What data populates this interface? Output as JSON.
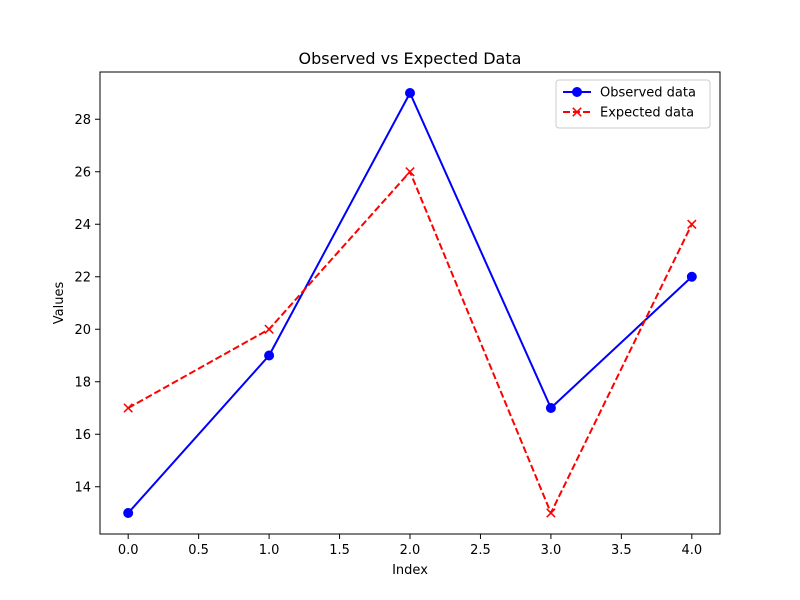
{
  "chart_data": {
    "type": "line",
    "title": "Observed vs Expected Data",
    "xlabel": "Index",
    "ylabel": "Values",
    "xlim": [
      -0.2,
      4.2
    ],
    "ylim": [
      12.2,
      29.8
    ],
    "xticks": [
      0.0,
      0.5,
      1.0,
      1.5,
      2.0,
      2.5,
      3.0,
      3.5,
      4.0
    ],
    "xtick_labels": [
      "0.0",
      "0.5",
      "1.0",
      "1.5",
      "2.0",
      "2.5",
      "3.0",
      "3.5",
      "4.0"
    ],
    "yticks": [
      14,
      16,
      18,
      20,
      22,
      24,
      26,
      28
    ],
    "ytick_labels": [
      "14",
      "16",
      "18",
      "20",
      "22",
      "24",
      "26",
      "28"
    ],
    "grid": false,
    "legend_position": "top-right",
    "series": [
      {
        "name": "Observed data",
        "x": [
          0,
          1,
          2,
          3,
          4
        ],
        "y": [
          13,
          19,
          29,
          17,
          22
        ],
        "color": "#0000ff",
        "linestyle": "solid",
        "marker": "circle"
      },
      {
        "name": "Expected data",
        "x": [
          0,
          1,
          2,
          3,
          4
        ],
        "y": [
          17,
          20,
          26,
          13,
          24
        ],
        "color": "#ff0000",
        "linestyle": "dashed",
        "marker": "x"
      }
    ]
  }
}
